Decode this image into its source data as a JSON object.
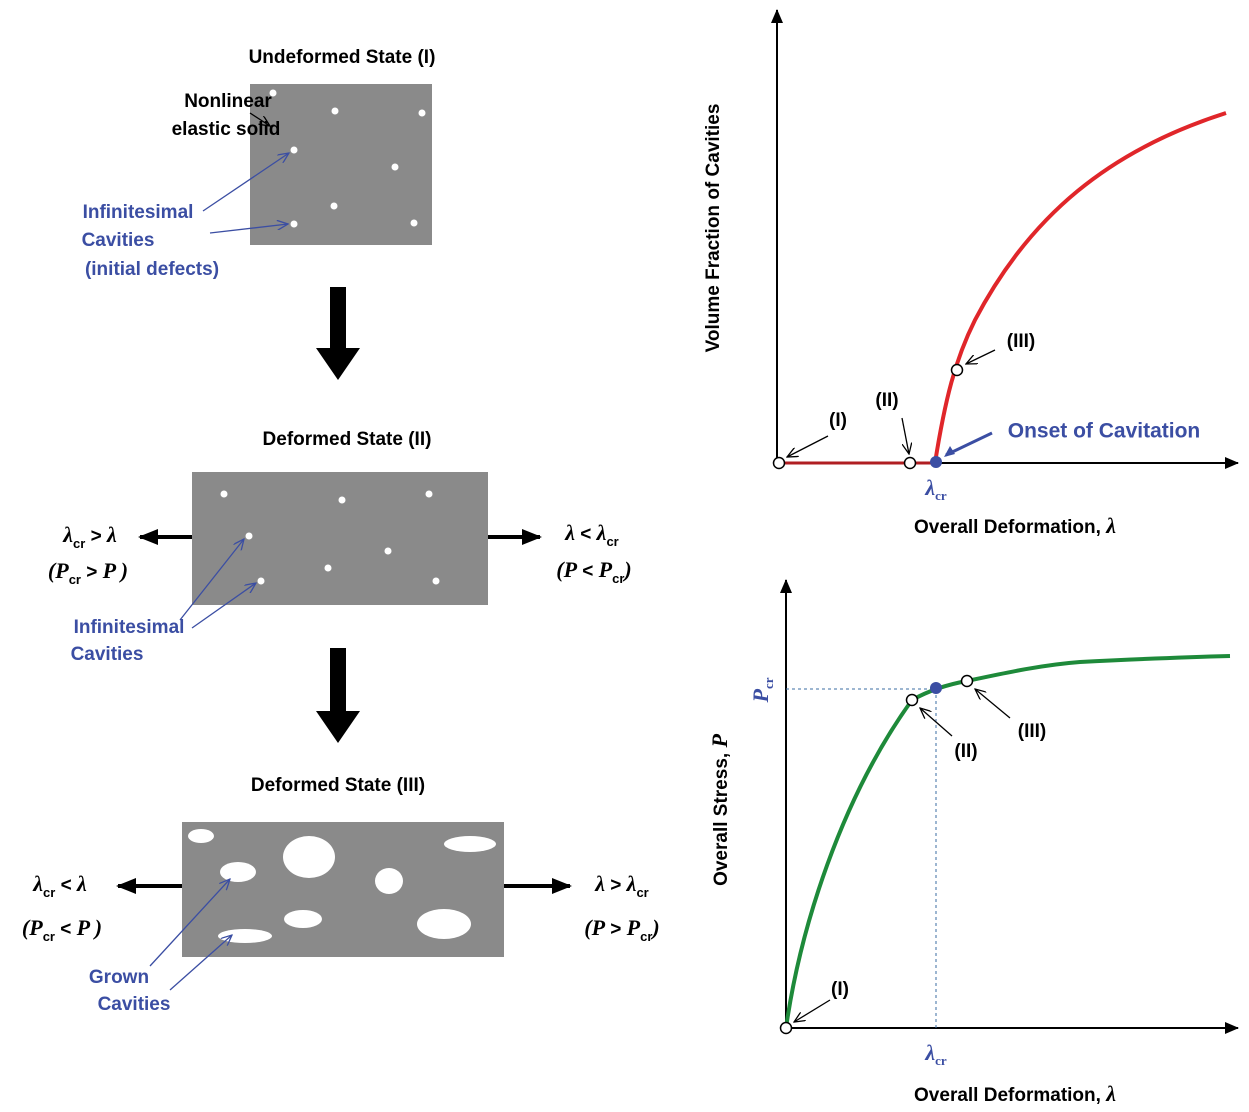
{
  "left": {
    "state_1": {
      "title": "Undeformed State (I)",
      "solid_label": [
        "Nonlinear",
        "elastic solid"
      ],
      "cavity_label": [
        "Infinitesimal",
        "Cavities",
        "(initial defects)"
      ]
    },
    "state_2": {
      "title": "Deformed State (II)",
      "left_strain": [
        "λ",
        "cr",
        " > ",
        "λ"
      ],
      "left_stress": [
        "(",
        "P",
        "cr",
        " > ",
        "P",
        " )"
      ],
      "right_strain": [
        "λ",
        " < ",
        "λ",
        "cr"
      ],
      "right_stress": [
        "(",
        "P",
        " < ",
        "P",
        "cr",
        ")"
      ],
      "cavity_label": [
        "Infinitesimal",
        "Cavities"
      ]
    },
    "state_3": {
      "title": "Deformed State (III)",
      "left_strain": [
        "λ",
        "cr",
        " < ",
        "λ"
      ],
      "left_stress": [
        "(",
        "P",
        "cr",
        " < ",
        "P",
        " )"
      ],
      "right_strain": [
        "λ",
        " > ",
        "λ",
        "cr"
      ],
      "right_stress": [
        "(",
        "P",
        " > ",
        "P",
        "cr",
        ")"
      ],
      "cavity_label": [
        "Grown",
        "Cavities"
      ]
    }
  },
  "top_plot": {
    "y_label": "Volume Fraction of Cavities",
    "x_label": "Overall Deformation, ",
    "x_symbol": "λ",
    "point_labels": [
      "(I)",
      "(II)",
      "(III)"
    ],
    "onset_label": "Onset of Cavitation",
    "critical": [
      "λ",
      "cr"
    ]
  },
  "bottom_plot": {
    "y_label": "Overall Stress, ",
    "y_symbol": "P",
    "x_label": "Overall Deformation, ",
    "x_symbol": "λ",
    "point_labels": [
      "(I)",
      "(II)",
      "(III)"
    ],
    "critical_x": [
      "λ",
      "cr"
    ],
    "critical_y": [
      "P",
      "cr"
    ]
  }
}
